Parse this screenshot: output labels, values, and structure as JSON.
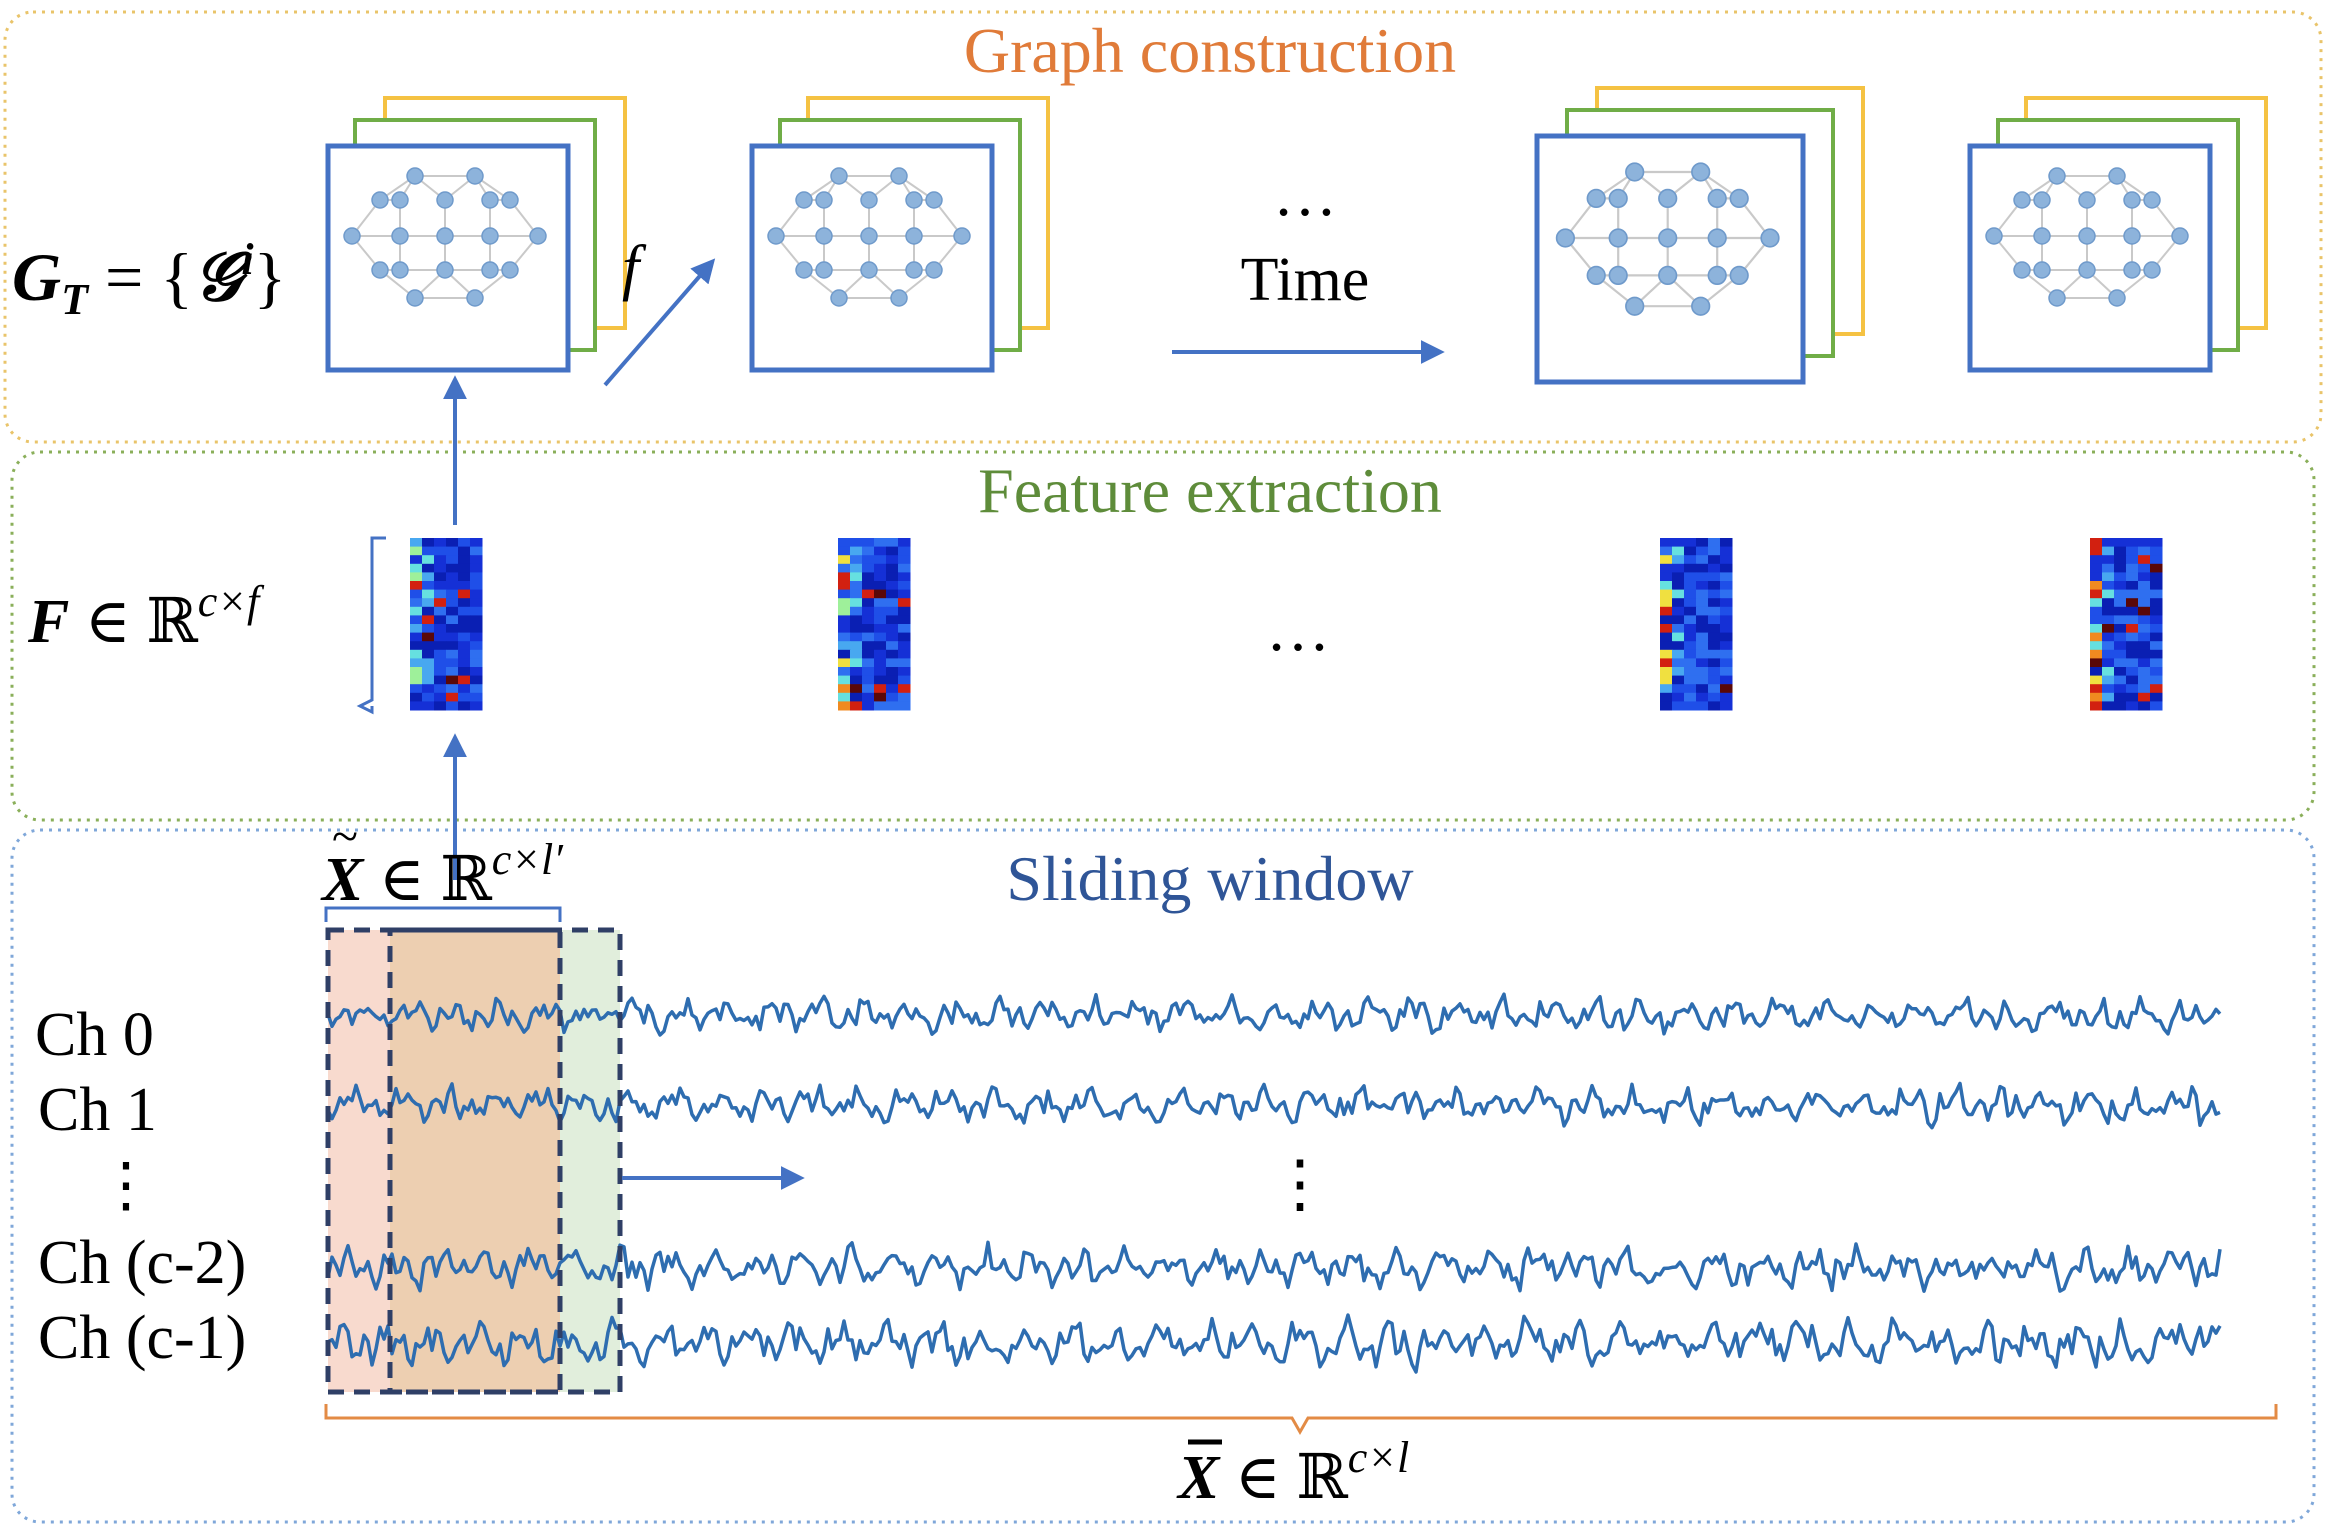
{
  "colors": {
    "graph": "#E07B39",
    "graph_border": "#E9C46A",
    "feature": "#5E8C3A",
    "feature_border": "#8AAF5A",
    "window": "#2F5597",
    "window_border": "#7FA7D9",
    "arrow": "#4472C4",
    "node": "#8DB3DB",
    "signal": "#2E6DB0",
    "frame_blue": "#4472C4",
    "frame_green": "#70AD47",
    "frame_yellow": "#F5C242",
    "bracket_orange": "#E38B45",
    "bracket_blue": "#4472C4"
  },
  "sections": {
    "graph_title": "Graph construction",
    "feature_title": "Feature extraction",
    "window_title": "Sliding window"
  },
  "labels": {
    "gt_lhs": "G",
    "gt_sub": "T",
    "gt_eq": " = {",
    "gt_g": "𝒢",
    "gt_sup": "i",
    "gt_close": "}",
    "f_label": "f",
    "time": "Time",
    "h_dots": "…",
    "v_dots": "⋮",
    "feature_lhs": "F",
    "feature_rhs": " ∈ ℝ",
    "feature_sup": "c×f",
    "window_lhs": "X",
    "window_rhs": " ∈ ℝ",
    "window_sup": "c×l′",
    "full_lhs": "X",
    "full_rhs": " ∈ ℝ",
    "full_sup": "c×l"
  },
  "channels": [
    "Ch 0",
    "Ch 1",
    "Ch (c-2)",
    "Ch (c-1)"
  ]
}
